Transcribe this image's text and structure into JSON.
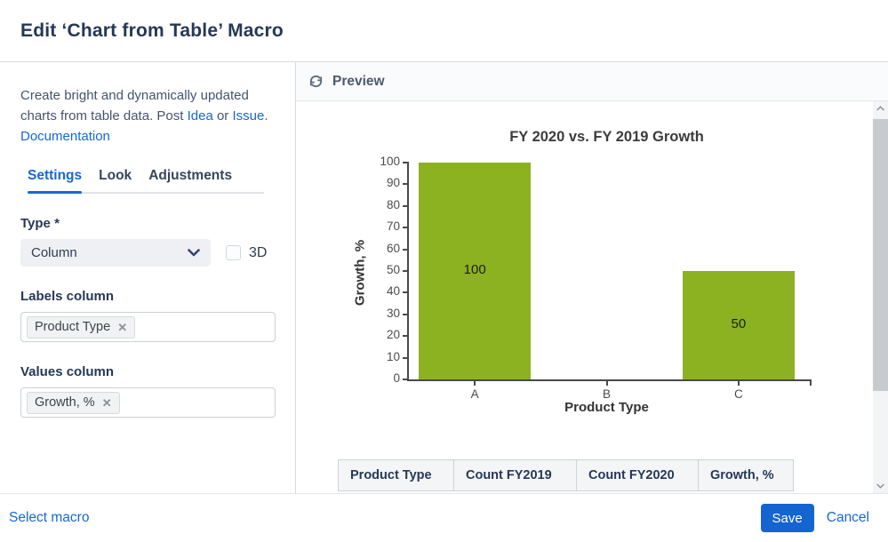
{
  "header": {
    "title": "Edit ‘Chart from Table’ Macro"
  },
  "panel": {
    "description": {
      "text1": "Create bright and dynamically updated charts from table data. Post ",
      "idea_link": "Idea",
      "text2": " or ",
      "issue_link": "Issue",
      "text3": ". ",
      "documentation_link": "Documentation"
    },
    "tabs": [
      {
        "label": "Settings",
        "active": true
      },
      {
        "label": "Look",
        "active": false
      },
      {
        "label": "Adjustments",
        "active": false
      }
    ],
    "type_field": {
      "label": "Type *",
      "value": "Column"
    },
    "three_d": {
      "label": "3D",
      "checked": false
    },
    "labels_column": {
      "label": "Labels column",
      "chip": "Product Type",
      "remove_icon": "✕"
    },
    "values_column": {
      "label": "Values column",
      "chip": "Growth, %",
      "remove_icon": "✕"
    }
  },
  "preview": {
    "title": "Preview"
  },
  "chart_data": {
    "type": "bar",
    "title": "FY 2020 vs. FY 2019 Growth",
    "categories": [
      "A",
      "B",
      "C"
    ],
    "values": [
      100,
      0,
      50
    ],
    "xlabel": "Product Type",
    "ylabel": "Growth, %",
    "ylim": [
      0,
      100
    ],
    "yticks": [
      0,
      10,
      20,
      30,
      40,
      50,
      60,
      70,
      80,
      90,
      100
    ],
    "bar_color": "#8cb222",
    "show_value_labels": true,
    "grid": false,
    "legend": false
  },
  "preview_table": {
    "columns": [
      "Product Type",
      "Count FY2019",
      "Count FY2020",
      "Growth, %"
    ]
  },
  "footer": {
    "select_macro": "Select macro",
    "save": "Save",
    "cancel": "Cancel"
  },
  "colors": {
    "accent": "#1667d2",
    "save_button": "#1464d1",
    "bar": "#8cb222",
    "title_text": "#253858"
  }
}
